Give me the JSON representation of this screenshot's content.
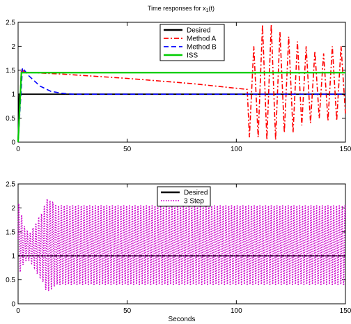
{
  "chart_data": [
    {
      "type": "line",
      "title": "Time responses for x",
      "title_subscript": "1",
      "title_suffix": "(t)",
      "xlabel": "",
      "ylabel": "",
      "xlim": [
        0,
        150
      ],
      "ylim": [
        0,
        2.5
      ],
      "xticks": [
        "0",
        "50",
        "100",
        "150"
      ],
      "yticks": [
        "0",
        "0.5",
        "1",
        "1.5",
        "2",
        "2.5"
      ],
      "grid": false,
      "legend_position": "top-center",
      "series": [
        {
          "name": "Desired",
          "color": "#000000",
          "style": "solid",
          "points": [
            [
              0,
              0
            ],
            [
              0.5,
              1
            ],
            [
              150,
              1
            ]
          ]
        },
        {
          "name": "Method A",
          "color": "#ff0000",
          "style": "dashdot",
          "points": [
            [
              0,
              0
            ],
            [
              1.5,
              1.52
            ],
            [
              3,
              1.46
            ],
            [
              20,
              1.42
            ],
            [
              50,
              1.33
            ],
            [
              80,
              1.22
            ],
            [
              105,
              1.1
            ],
            [
              106,
              0.1
            ],
            [
              108,
              2.0
            ],
            [
              110,
              0.1
            ],
            [
              112,
              2.45
            ],
            [
              114,
              0.05
            ],
            [
              116,
              2.45
            ],
            [
              118,
              0.05
            ],
            [
              120,
              2.3
            ],
            [
              122,
              0.2
            ],
            [
              124,
              2.2
            ],
            [
              126,
              0.2
            ],
            [
              128,
              2.1
            ],
            [
              130,
              0.35
            ],
            [
              132,
              2.0
            ],
            [
              134,
              0.4
            ],
            [
              136,
              1.9
            ],
            [
              138,
              0.5
            ],
            [
              140,
              1.85
            ],
            [
              142,
              0.45
            ],
            [
              144,
              2.0
            ],
            [
              146,
              0.45
            ],
            [
              148,
              2.0
            ],
            [
              150,
              0.6
            ]
          ]
        },
        {
          "name": "Method B",
          "color": "#0000ff",
          "style": "dashed",
          "points": [
            [
              0,
              0
            ],
            [
              2,
              1.55
            ],
            [
              5,
              1.38
            ],
            [
              10,
              1.17
            ],
            [
              15,
              1.06
            ],
            [
              20,
              1.02
            ],
            [
              25,
              1.0
            ],
            [
              150,
              1.0
            ]
          ]
        },
        {
          "name": "ISS",
          "color": "#00cc00",
          "style": "solid",
          "points": [
            [
              0,
              0
            ],
            [
              1.5,
              1.45
            ],
            [
              150,
              1.45
            ]
          ]
        }
      ]
    },
    {
      "type": "line",
      "title": "",
      "xlabel": "Seconds",
      "ylabel": "",
      "xlim": [
        0,
        150
      ],
      "ylim": [
        0,
        2.5
      ],
      "xticks": [
        "0",
        "50",
        "100",
        "150"
      ],
      "yticks": [
        "0",
        "0.5",
        "1",
        "1.5",
        "2",
        "2.5"
      ],
      "grid": false,
      "legend_position": "top-center",
      "series": [
        {
          "name": "Desired",
          "color": "#000000",
          "style": "solid",
          "points": [
            [
              0,
              1
            ],
            [
              150,
              1
            ]
          ]
        },
        {
          "name": "3 Step",
          "color": "#cc00cc",
          "style": "dotted",
          "oscillation": {
            "period": 1.3,
            "envelope": [
              [
                0,
                0.55,
                2.15
              ],
              [
                3,
                0.9,
                1.6
              ],
              [
                5,
                0.9,
                1.45
              ],
              [
                7,
                0.8,
                1.6
              ],
              [
                9,
                0.6,
                1.75
              ],
              [
                11,
                0.5,
                1.9
              ],
              [
                13,
                0.25,
                2.2
              ],
              [
                15,
                0.3,
                2.15
              ],
              [
                18,
                0.4,
                2.05
              ],
              [
                30,
                0.4,
                2.05
              ],
              [
                60,
                0.4,
                2.05
              ],
              [
                100,
                0.4,
                2.05
              ],
              [
                150,
                0.4,
                2.05
              ]
            ]
          }
        }
      ]
    }
  ]
}
